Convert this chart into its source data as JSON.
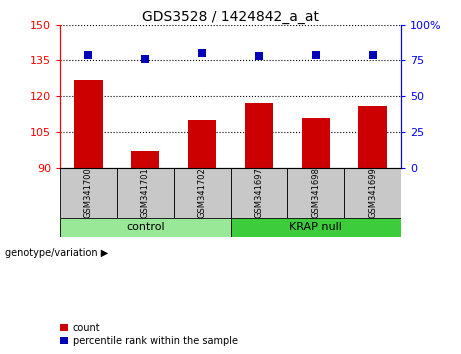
{
  "title": "GDS3528 / 1424842_a_at",
  "samples": [
    "GSM341700",
    "GSM341701",
    "GSM341702",
    "GSM341697",
    "GSM341698",
    "GSM341699"
  ],
  "bar_values": [
    127,
    97,
    110,
    117,
    111,
    116
  ],
  "percentile_values": [
    79,
    76,
    80,
    78,
    79,
    79
  ],
  "groups": [
    {
      "label": "control",
      "indices": [
        0,
        1,
        2
      ],
      "color": "#98E898"
    },
    {
      "label": "KRAP null",
      "indices": [
        3,
        4,
        5
      ],
      "color": "#3CCC3C"
    }
  ],
  "ylim_left": [
    90,
    150
  ],
  "ylim_right": [
    0,
    100
  ],
  "yticks_left": [
    90,
    105,
    120,
    135,
    150
  ],
  "yticks_right": [
    0,
    25,
    50,
    75,
    100
  ],
  "bar_color": "#CC0000",
  "dot_color": "#0000BB",
  "gray_bg": "#C8C8C8",
  "genotype_label": "genotype/variation",
  "legend_count": "count",
  "legend_percentile": "percentile rank within the sample",
  "bar_width": 0.5,
  "dot_size": 35,
  "ytick_fontsize": 8,
  "title_fontsize": 10,
  "sample_fontsize": 6,
  "group_fontsize": 8
}
